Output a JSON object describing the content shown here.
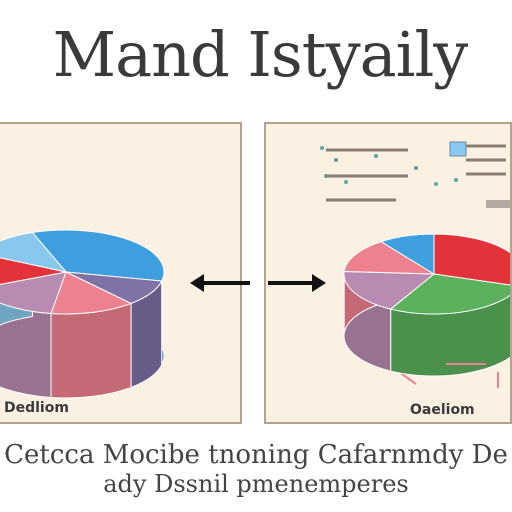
{
  "title": "Mand Istyaily",
  "left_panel": {
    "caption": "Dedliom"
  },
  "right_panel": {
    "caption": "Oaeliom"
  },
  "footer": {
    "line1": "Cetcca Mocibe tnoning Cafarnmdy De",
    "line2": "ady Dssnil pmenemperes"
  },
  "colors": {
    "blue": "#3f9fde",
    "lightblue": "#88c8ee",
    "red": "#e3323a",
    "pink": "#ee8190",
    "mauve": "#b98bb0",
    "purple": "#7f72a6",
    "green": "#5cb15d",
    "panel_bg": "#fbf1e2",
    "arrow": "#111111"
  },
  "chart_data": [
    {
      "type": "pie",
      "title": "",
      "categories": [
        "",
        "",
        "",
        "",
        "",
        ""
      ],
      "values": [
        34,
        10,
        14,
        16,
        14,
        12
      ],
      "colors": [
        "#3f9fde",
        "#7f72a6",
        "#ee8190",
        "#b98bb0",
        "#e3323a",
        "#88c8ee"
      ]
    },
    {
      "type": "pie",
      "title": "",
      "categories": [
        "",
        "",
        "",
        "",
        ""
      ],
      "values": [
        30,
        28,
        18,
        14,
        10
      ],
      "colors": [
        "#e3323a",
        "#5cb15d",
        "#b98bb0",
        "#ee8190",
        "#3f9fde"
      ]
    }
  ]
}
